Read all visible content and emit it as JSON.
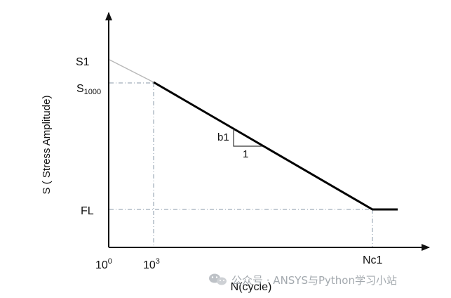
{
  "diagram": {
    "y_axis_title": "S ( Stress Amplitude)",
    "x_axis_title": "N(cycle)",
    "y_labels": {
      "s1": "S1",
      "s1000_main": "S",
      "s1000_sub": "1000",
      "fl": "FL"
    },
    "x_labels": {
      "origin_base": "10",
      "origin_exp": "0",
      "n1000_base": "10",
      "n1000_exp": "3",
      "nc1": "Nc1"
    },
    "slope_labels": {
      "rise": "b1",
      "run": "1"
    },
    "colors": {
      "axis": "#111111",
      "curve": "#000000",
      "extrapolation": "#b8b8b8",
      "guides": "#8a9aa8"
    }
  },
  "watermark": {
    "icon": "wechat-icon",
    "text": "公众号 · ANSYS与Python学习小站"
  }
}
